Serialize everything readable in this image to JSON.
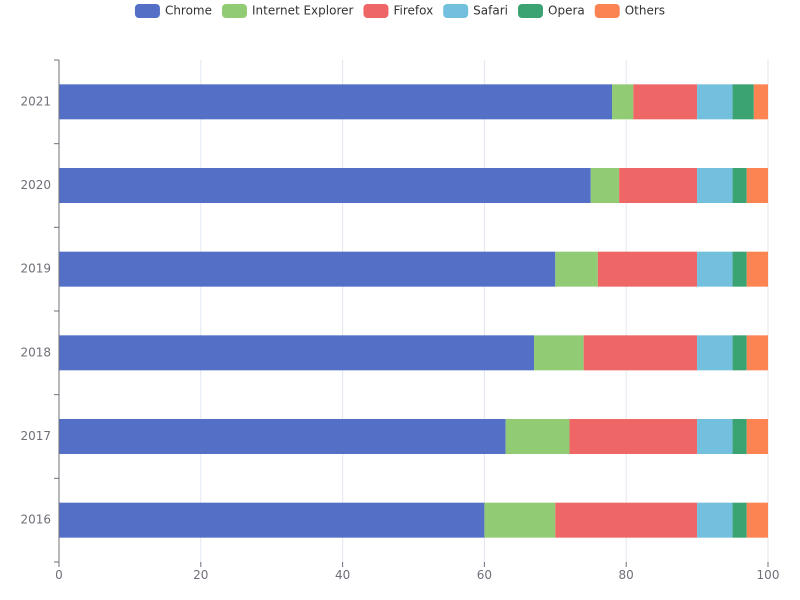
{
  "chart_data": {
    "type": "bar",
    "orientation": "horizontal",
    "stacked": true,
    "categories": [
      "2016",
      "2017",
      "2018",
      "2019",
      "2020",
      "2021"
    ],
    "series": [
      {
        "name": "Chrome",
        "color": "#5470c6",
        "values": [
          60,
          63,
          67,
          70,
          75,
          78
        ]
      },
      {
        "name": "Internet Explorer",
        "color": "#91cc75",
        "values": [
          10,
          9,
          7,
          6,
          4,
          3
        ]
      },
      {
        "name": "Firefox",
        "color": "#ee6666",
        "values": [
          20,
          18,
          16,
          14,
          11,
          9
        ]
      },
      {
        "name": "Safari",
        "color": "#73c0de",
        "values": [
          5,
          5,
          5,
          5,
          5,
          5
        ]
      },
      {
        "name": "Opera",
        "color": "#3ba272",
        "values": [
          2,
          2,
          2,
          2,
          2,
          3
        ]
      },
      {
        "name": "Others",
        "color": "#fc8452",
        "values": [
          3,
          3,
          3,
          3,
          3,
          2
        ]
      }
    ],
    "xlim": [
      0,
      100
    ],
    "xticks": [
      0,
      20,
      40,
      60,
      80,
      100
    ],
    "grid": true,
    "legend_position": "top-center",
    "title": "",
    "xlabel": "",
    "ylabel": ""
  }
}
